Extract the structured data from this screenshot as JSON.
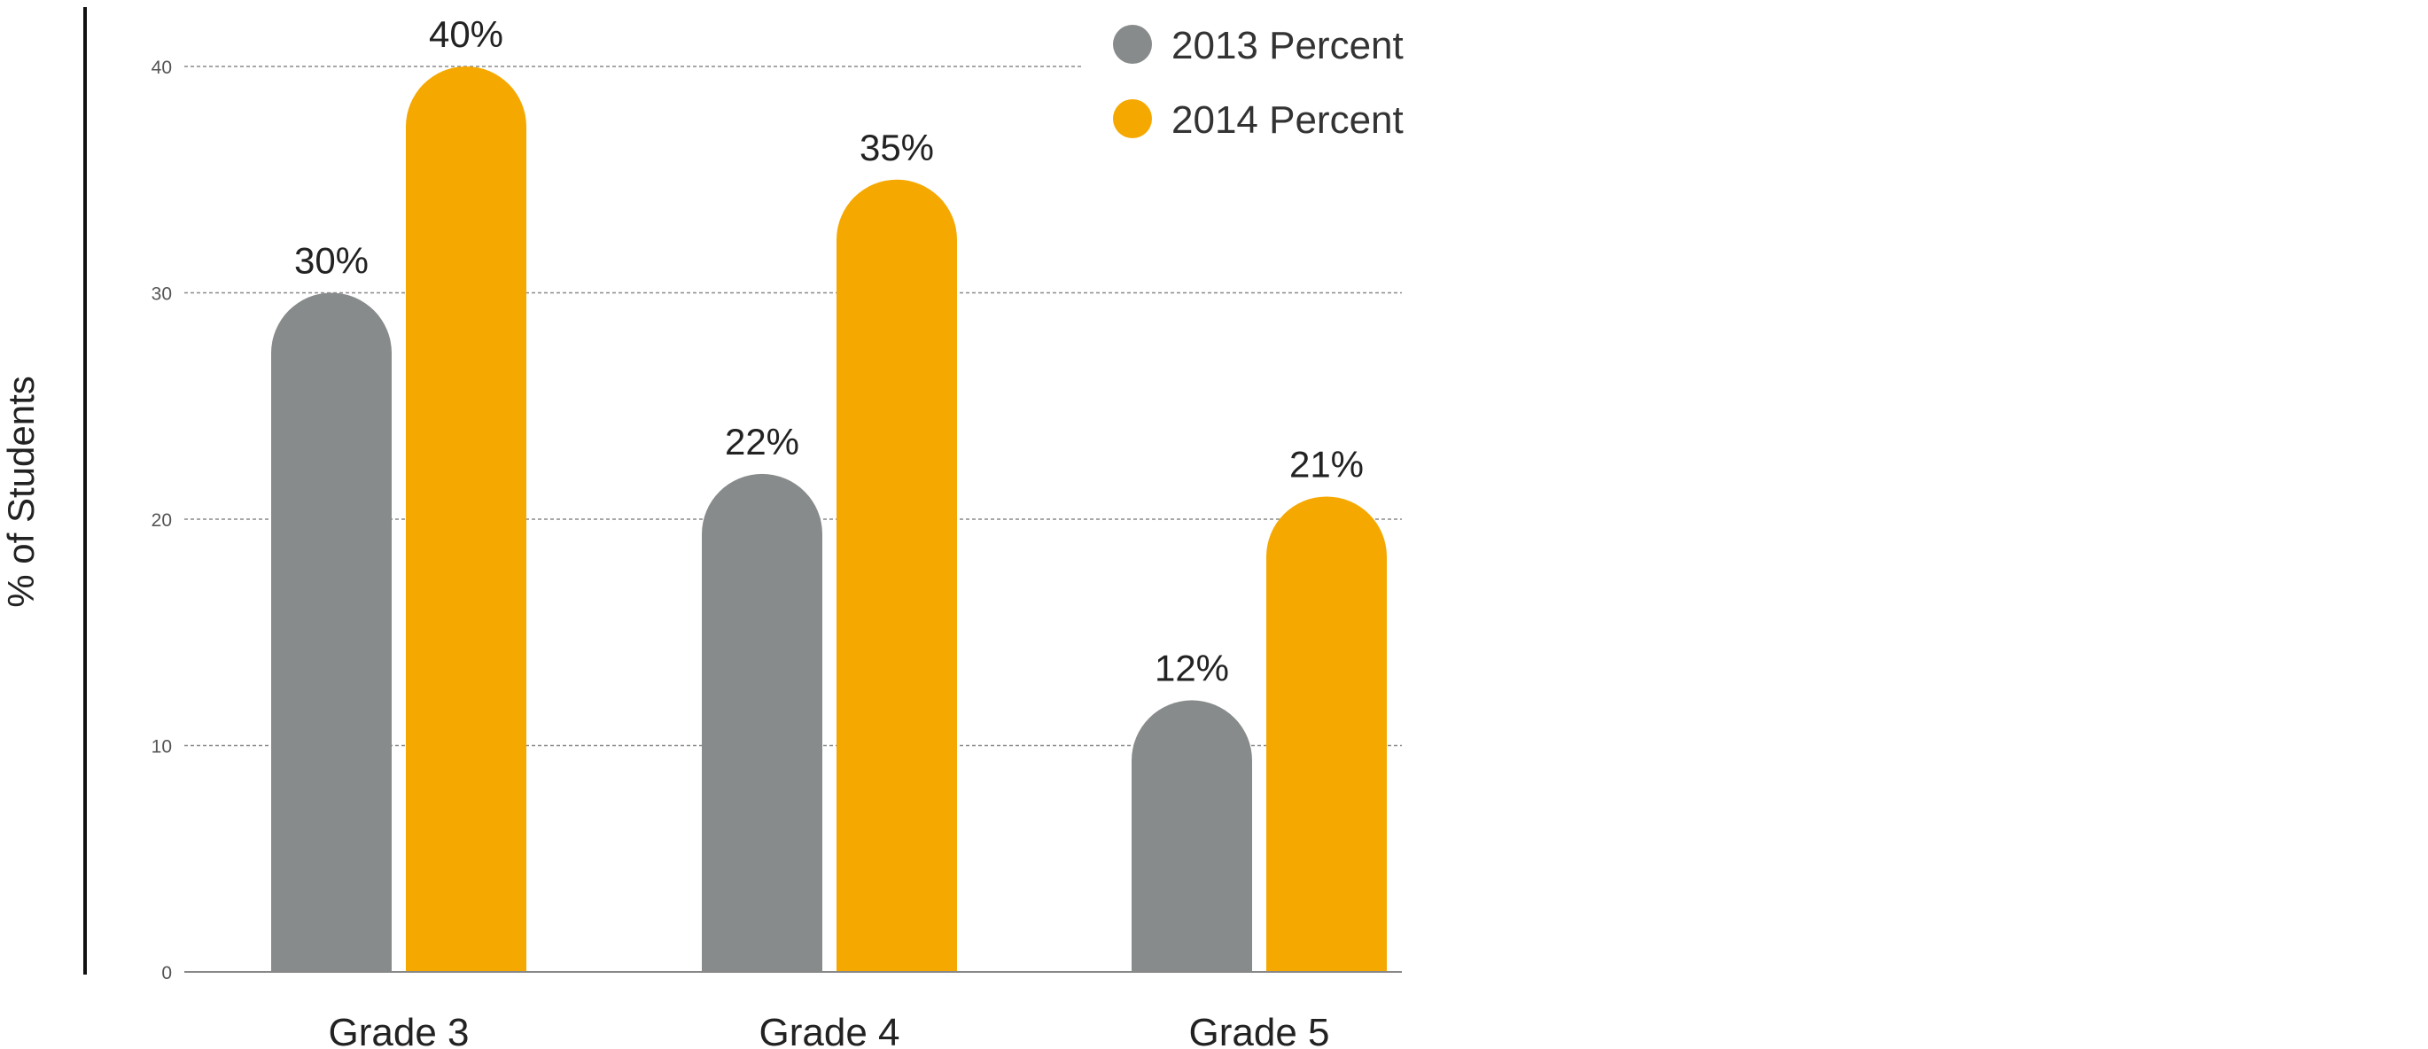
{
  "chart_data": {
    "type": "bar",
    "title": "",
    "xlabel": "",
    "ylabel": "% of Students",
    "categories": [
      "Grade 3",
      "Grade 4",
      "Grade 5"
    ],
    "series": [
      {
        "name": "2013 Percent",
        "color": "#888B8B",
        "values": [
          30,
          22,
          12
        ],
        "labels": [
          "30%",
          "22%",
          "12%"
        ]
      },
      {
        "name": "2014 Percent",
        "color": "#F5A800",
        "values": [
          40,
          35,
          21
        ],
        "labels": [
          "40%",
          "35%",
          "21%"
        ]
      }
    ],
    "ylim": [
      0,
      40
    ],
    "yticks": [
      0,
      10,
      20,
      30,
      40
    ],
    "grid": true,
    "legend": "top-right",
    "bar_style": "rounded-top"
  }
}
